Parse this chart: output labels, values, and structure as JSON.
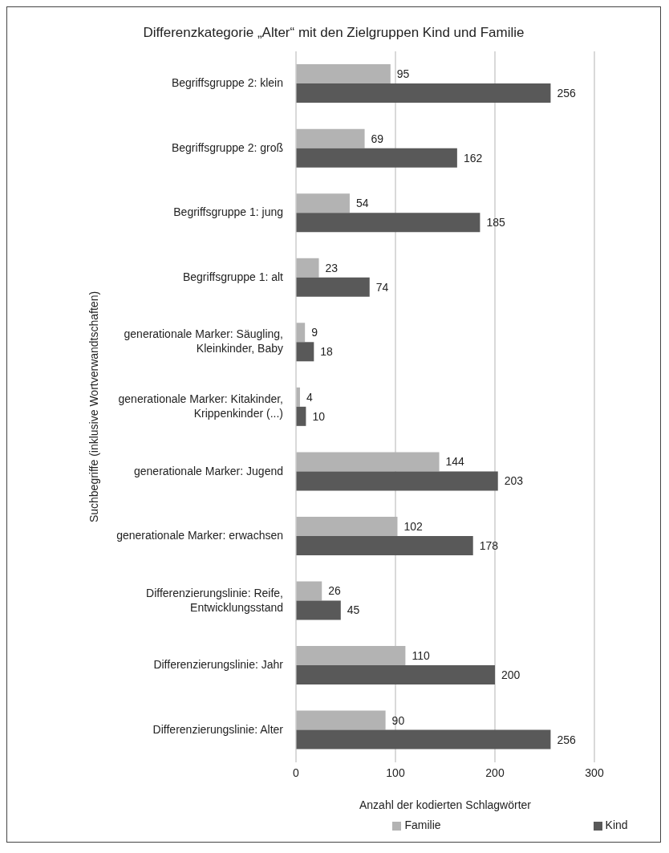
{
  "chart_data": {
    "type": "bar",
    "orientation": "horizontal",
    "title": "Differenzkategorie „Alter“ mit den Zielgruppen Kind und Familie",
    "xlabel": "Anzahl der kodierten Schlagwörter",
    "ylabel": "Suchbegriffe (inklusive Wortverwandtschaften)",
    "categories": [
      "Begriffsgruppe 2: klein",
      "Begriffsgruppe 2: groß",
      "Begriffsgruppe 1: jung",
      "Begriffsgruppe 1: alt",
      "generationale Marker: Säugling, Kleinkinder, Baby",
      "generationale Marker: Kitakinder, Krippenkinder (...)",
      "generationale Marker: Jugend",
      "generationale Marker: erwachsen",
      "Differenzierungslinie: Reife, Entwicklungsstand",
      "Differenzierungslinie: Jahr",
      "Differenzierungslinie: Alter"
    ],
    "series": [
      {
        "name": "Familie",
        "color": "#b3b3b3",
        "values": [
          95,
          69,
          54,
          23,
          9,
          4,
          144,
          102,
          26,
          110,
          90
        ]
      },
      {
        "name": "Kind",
        "color": "#595959",
        "values": [
          256,
          162,
          185,
          74,
          18,
          10,
          203,
          178,
          45,
          200,
          256
        ]
      }
    ],
    "xlim": [
      0,
      300
    ],
    "xticks": [
      0,
      100,
      200,
      300
    ],
    "grid": "x",
    "legend": "bottom",
    "data_labels": true
  }
}
